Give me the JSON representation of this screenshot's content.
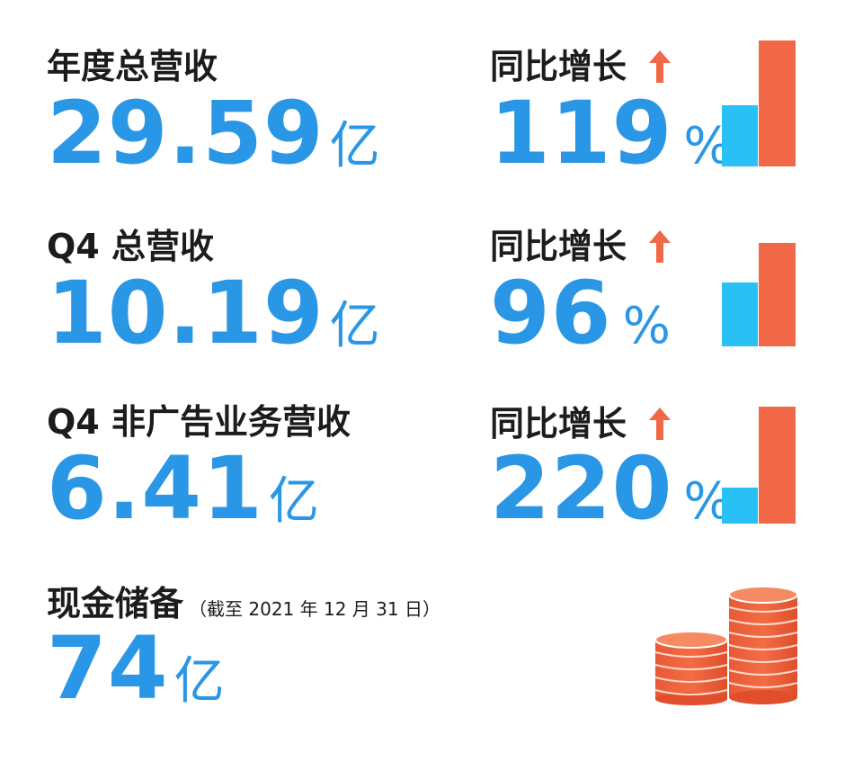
{
  "colors": {
    "text": "#1c1c1c",
    "blue": "#2a97e6",
    "orange": "#f06845",
    "lightblue": "#28c0f5"
  },
  "metrics": [
    {
      "label": "年度总营收",
      "value": "29.59",
      "unit": "亿",
      "growth_label": "同比增长",
      "growth_value": "119",
      "growth_unit": "%",
      "bar_prev_ratio": 0.46
    },
    {
      "label": "Q4 总营收",
      "value": "10.19",
      "unit": "亿",
      "growth_label": "同比增长",
      "growth_value": "96",
      "growth_unit": "%",
      "bar_prev_ratio": 0.51
    },
    {
      "label": "Q4 非广告业务营收",
      "value": "6.41",
      "unit": "亿",
      "growth_label": "同比增长",
      "growth_value": "220",
      "growth_unit": "%",
      "bar_prev_ratio": 0.31
    }
  ],
  "cash": {
    "label": "现金储备",
    "note": "（截至 2021 年 12 月 31 日）",
    "value": "74",
    "unit": "亿"
  },
  "icons": {
    "growth": "up-arrow-icon",
    "bars": "bar-comparison-icon",
    "cash": "coin-stacks-icon"
  }
}
